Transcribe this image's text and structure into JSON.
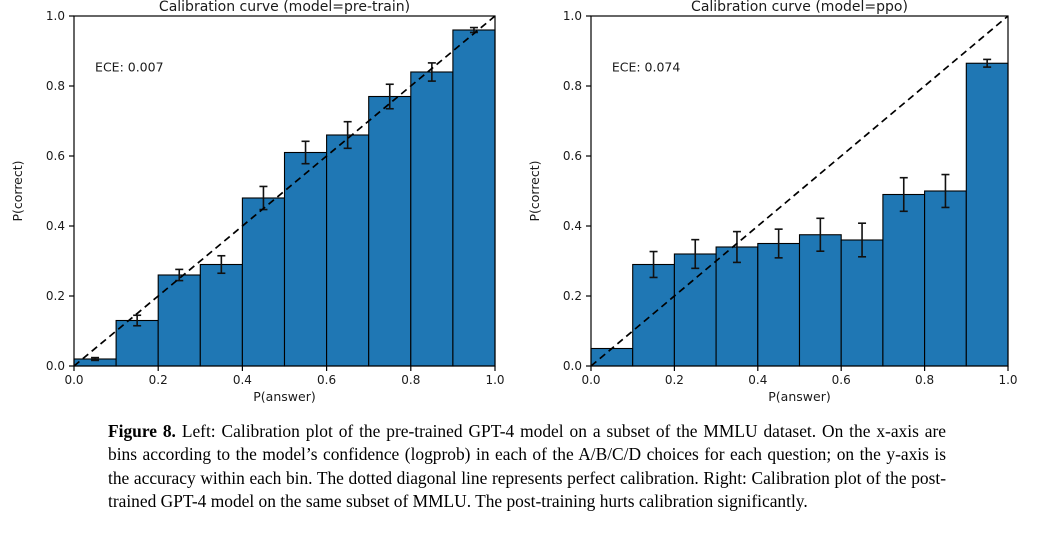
{
  "caption": {
    "label": "Figure 8.",
    "text": "Left: Calibration plot of the pre-trained GPT-4 model on a subset of the MMLU dataset. On the x-axis are bins according to the model’s confidence (logprob) in each of the A/B/C/D choices for each question; on the y-axis is the accuracy within each bin. The dotted diagonal line represents perfect calibration. Right: Calibration plot of the post-trained GPT-4 model on the same subset of MMLU. The post-training hurts calibration significantly."
  },
  "chart_data": [
    {
      "type": "bar",
      "title": "Calibration curve (model=pre-train)",
      "annotation": "ECE: 0.007",
      "xlabel": "P(answer)",
      "ylabel": "P(correct)",
      "xlim": [
        0.0,
        1.0
      ],
      "ylim": [
        0.0,
        1.0
      ],
      "xticks": [
        0.0,
        0.2,
        0.4,
        0.6,
        0.8,
        1.0
      ],
      "yticks": [
        0.0,
        0.2,
        0.4,
        0.6,
        0.8,
        1.0
      ],
      "bin_width": 0.1,
      "bin_centers": [
        0.05,
        0.15,
        0.25,
        0.35,
        0.45,
        0.55,
        0.65,
        0.75,
        0.85,
        0.95
      ],
      "values": [
        0.02,
        0.13,
        0.26,
        0.29,
        0.48,
        0.61,
        0.66,
        0.77,
        0.84,
        0.96
      ],
      "errors": [
        0.004,
        0.015,
        0.016,
        0.025,
        0.033,
        0.032,
        0.038,
        0.035,
        0.026,
        0.007
      ],
      "diagonal": true,
      "grid": false,
      "legend": null,
      "bar_color": "#1f77b4",
      "bar_edge_color": "#000000",
      "diagonal_color": "#000000",
      "diagonal_style": "dashed"
    },
    {
      "type": "bar",
      "title": "Calibration curve (model=ppo)",
      "annotation": "ECE: 0.074",
      "xlabel": "P(answer)",
      "ylabel": "P(correct)",
      "xlim": [
        0.0,
        1.0
      ],
      "ylim": [
        0.0,
        1.0
      ],
      "xticks": [
        0.0,
        0.2,
        0.4,
        0.6,
        0.8,
        1.0
      ],
      "yticks": [
        0.0,
        0.2,
        0.4,
        0.6,
        0.8,
        1.0
      ],
      "bin_width": 0.1,
      "bin_centers": [
        0.05,
        0.15,
        0.25,
        0.35,
        0.45,
        0.55,
        0.65,
        0.75,
        0.85,
        0.95
      ],
      "values": [
        0.05,
        0.29,
        0.32,
        0.34,
        0.35,
        0.375,
        0.36,
        0.49,
        0.5,
        0.865
      ],
      "errors": [
        0,
        0.037,
        0.041,
        0.044,
        0.041,
        0.047,
        0.048,
        0.048,
        0.047,
        0.011
      ],
      "diagonal": true,
      "grid": false,
      "legend": null,
      "bar_color": "#1f77b4",
      "bar_edge_color": "#000000",
      "diagonal_color": "#000000",
      "diagonal_style": "dashed"
    }
  ]
}
